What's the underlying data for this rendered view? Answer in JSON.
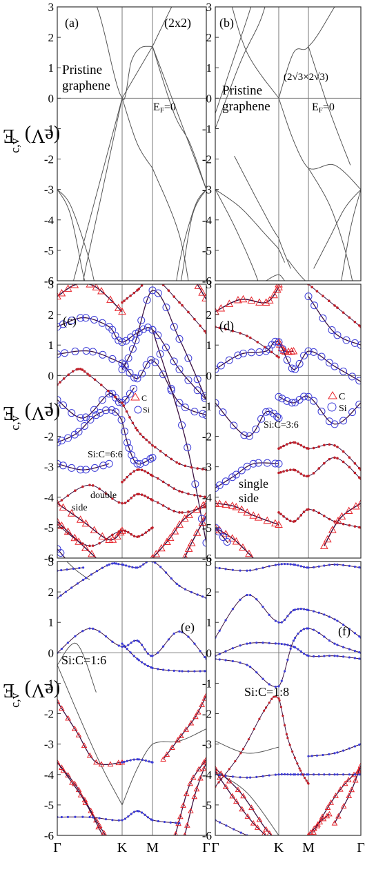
{
  "figure": {
    "ylabel_base": "E",
    "ylabel_sup": "c,v",
    "ylabel_unit": " (eV)",
    "yticks": [
      "3",
      "2",
      "1",
      "0",
      "-1",
      "-2",
      "-3",
      "-4",
      "-5",
      "-6"
    ],
    "xticks": [
      "Γ",
      "K",
      "M",
      "Γ"
    ]
  },
  "chart_data": [
    {
      "type": "line",
      "panel": "(a)",
      "ylim": [
        -6,
        3
      ],
      "x": [
        "Γ",
        "K",
        "M",
        "Γ"
      ],
      "grid": false,
      "annotations": [
        "(2x2)",
        "Pristine",
        "graphene",
        "E",
        "F",
        "=0"
      ],
      "series": [
        {
          "y_at_high_symmetry": [
            -3,
            0,
            1.7,
            -3
          ]
        },
        {
          "y_at_high_symmetry": [
            -3,
            0,
            -2.3,
            -3
          ]
        }
      ]
    },
    {
      "type": "line",
      "panel": "(b)",
      "ylim": [
        -6,
        3
      ],
      "x": [
        "Γ",
        "K",
        "M",
        "Γ"
      ],
      "grid": false,
      "annotations": [
        "(2√3×2√3)",
        "Pristine",
        "graphene",
        "E",
        "F",
        "=0"
      ]
    },
    {
      "type": "scatter",
      "panel": "(c)",
      "ylim": [
        -6,
        3
      ],
      "x": [
        "Γ",
        "K",
        "M",
        "Γ"
      ],
      "annotations": [
        "Si:C=6:6",
        "double",
        "side"
      ],
      "legend": [
        "C",
        "Si"
      ],
      "markers": {
        "C": "red triangle",
        "Si": "blue circle"
      }
    },
    {
      "type": "scatter",
      "panel": "(d)",
      "ylim": [
        -6,
        3
      ],
      "x": [
        "Γ",
        "K",
        "M",
        "Γ"
      ],
      "annotations": [
        "Si:C=3:6",
        "single",
        "side"
      ],
      "legend": [
        "C",
        "Si"
      ],
      "markers": {
        "C": "red triangle",
        "Si": "blue circle"
      }
    },
    {
      "type": "scatter",
      "panel": "(e)",
      "ylim": [
        -6,
        3
      ],
      "x": [
        "Γ",
        "K",
        "M",
        "Γ"
      ],
      "annotations": [
        "Si:C=1:6"
      ]
    },
    {
      "type": "scatter",
      "panel": "(f)",
      "ylim": [
        -6,
        3
      ],
      "x": [
        "Γ",
        "K",
        "M",
        "Γ"
      ],
      "annotations": [
        "Si:C=1:8"
      ]
    }
  ],
  "colors": {
    "c_marker": "#e8232a",
    "si_marker": "#3b3bd8",
    "band": "#555555",
    "dark_band": "#3a1040"
  }
}
